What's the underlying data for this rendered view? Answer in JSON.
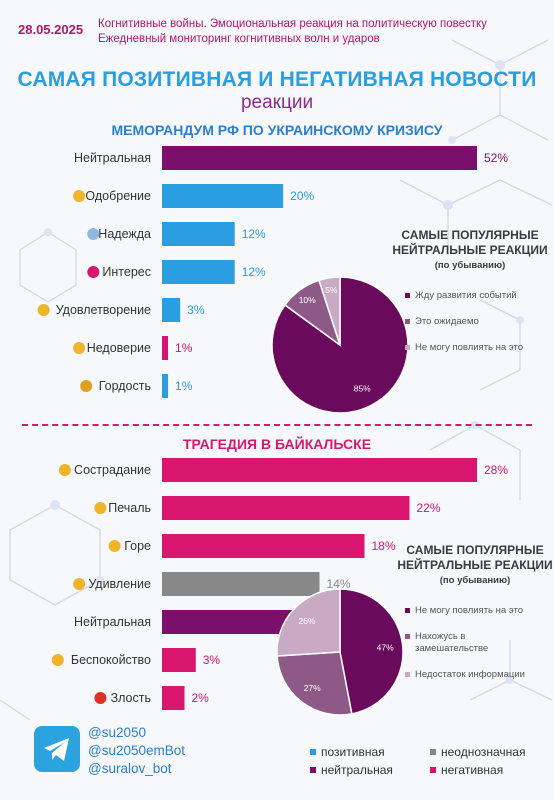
{
  "header": {
    "date": "28.05.2025",
    "line1": "Когнитивные войны. Эмоциональная реакция на политическую повестку",
    "line2": "Ежедневный мониторинг когнитивных волн и ударов"
  },
  "title": {
    "main": "САМАЯ ПОЗИТИВНАЯ И НЕГАТИВНАЯ НОВОСТИ",
    "sub": "реакции"
  },
  "colors": {
    "positive": "#2a9ee0",
    "ambiguous": "#888888",
    "neutral": "#7a0f6e",
    "negative": "#d8166f",
    "pie_dark": "#6a0a5c",
    "pie_mid": "#8d5a87",
    "pie_light": "#c9aac4"
  },
  "chart_data": [
    {
      "type": "bar",
      "orientation": "horizontal",
      "title": "МЕМОРАНДУМ РФ ПО УКРАИНСКОМУ КРИЗИСУ",
      "categories": [
        "Нейтральная",
        "Одобрение",
        "Надежда",
        "Интерес",
        "Удовлетворение",
        "Недоверие",
        "Гордость"
      ],
      "icons": [
        "",
        "heart-hands-icon",
        "praying-hands-icon",
        "question-exclamation-icon",
        "smile-icon",
        "unamused-icon",
        "trophy-icon"
      ],
      "values": [
        52,
        20,
        12,
        12,
        3,
        1,
        1
      ],
      "value_labels": [
        "52%",
        "20%",
        "12%",
        "12%",
        "3%",
        "1%",
        "1%"
      ],
      "groups": [
        "neutral",
        "positive",
        "positive",
        "positive",
        "positive",
        "negative",
        "positive"
      ],
      "xlim": [
        0,
        60
      ]
    },
    {
      "type": "pie",
      "title": "САМЫЕ ПОПУЛЯРНЫЕ НЕЙТРАЛЬНЫЕ РЕАКЦИИ",
      "subtitle": "(по убыванию)",
      "labels": [
        "Жду развития событий",
        "Это ожидаемо",
        "Не могу повлиять на это"
      ],
      "values": [
        85,
        10,
        5
      ],
      "value_labels": [
        "85%",
        "10%",
        "5%"
      ]
    },
    {
      "type": "bar",
      "orientation": "horizontal",
      "title": "ТРАГЕДИЯ В БАЙКАЛЬСКЕ",
      "categories": [
        "Сострадание",
        "Печаль",
        "Горе",
        "Удивление",
        "Нейтральная",
        "Беспокойство",
        "Злость"
      ],
      "icons": [
        "sweat-face-icon",
        "pensive-face-icon",
        "crying-face-icon",
        "astonished-face-icon",
        "",
        "grimace-face-icon",
        "angry-face-icon"
      ],
      "values": [
        28,
        22,
        18,
        14,
        13,
        3,
        2
      ],
      "value_labels": [
        "28%",
        "22%",
        "18%",
        "14%",
        "13%",
        "3%",
        "2%"
      ],
      "groups": [
        "negative",
        "negative",
        "negative",
        "ambiguous",
        "neutral",
        "negative",
        "negative"
      ],
      "xlim": [
        0,
        60
      ]
    },
    {
      "type": "pie",
      "title": "САМЫЕ ПОПУЛЯРНЫЕ НЕЙТРАЛЬНЫЕ РЕАКЦИИ",
      "subtitle": "(по убыванию)",
      "labels": [
        "Не могу повлиять на это",
        "Нахожусь в замешательстве",
        "Недостаток информации"
      ],
      "values": [
        47,
        27,
        26
      ],
      "value_labels": [
        "47%",
        "27%",
        "26%"
      ]
    }
  ],
  "contacts": [
    "@su2050",
    "@su2050emBot",
    "@suralov_bot"
  ],
  "legend": {
    "positive": "позитивная",
    "ambiguous": "неоднозначная",
    "neutral": "нейтральная",
    "negative": "негативная"
  }
}
